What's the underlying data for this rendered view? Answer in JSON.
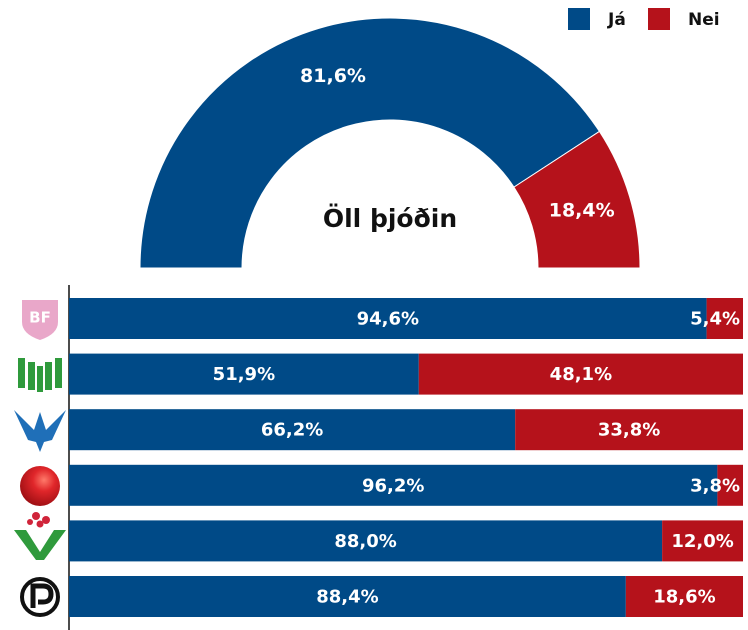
{
  "chart_data": [
    {
      "type": "half-donut",
      "title": "Öll þjóðin",
      "values": [
        81.6,
        18.4
      ],
      "value_labels": [
        "81,6%",
        "18,4%"
      ],
      "colors": [
        "#004a87",
        "#b5121b"
      ]
    },
    {
      "type": "stacked-bar-horizontal",
      "categories": [
        "BF",
        null,
        null,
        null,
        null,
        null
      ],
      "series": [
        {
          "name": "Já",
          "color": "#004a87",
          "values": [
            94.6,
            51.9,
            66.2,
            96.2,
            88.0,
            88.4
          ],
          "value_labels": [
            "94,6%",
            "51,9%",
            "66,2%",
            "96,2%",
            "88,0%",
            "88,4%"
          ]
        },
        {
          "name": "Nei",
          "color": "#b5121b",
          "values": [
            5.4,
            48.1,
            33.8,
            3.8,
            12.0,
            18.6
          ],
          "value_labels": [
            "5,4%",
            "48,1%",
            "33,8%",
            "3,8%",
            "12,0%",
            "18,6%"
          ]
        }
      ],
      "legend": "top-right"
    }
  ]
}
